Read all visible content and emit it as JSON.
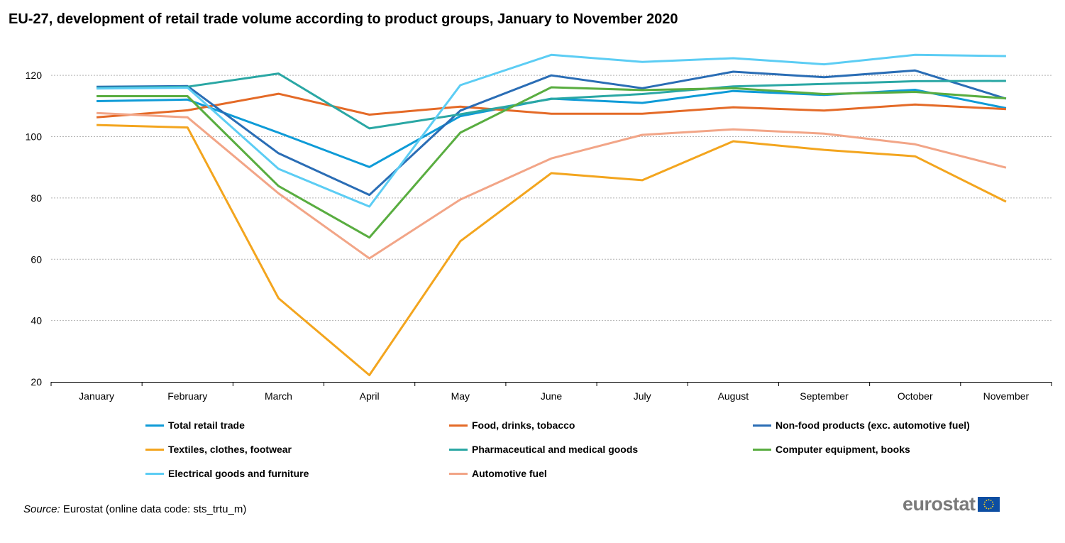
{
  "title": "EU-27, development of retail trade volume according to product groups, January to November 2020",
  "source": {
    "label": "Source:",
    "text": "Eurostat (online data code: sts_trtu_m)"
  },
  "logo": {
    "text": "eurostat",
    "flag": "eu-flag-icon"
  },
  "chart_data": {
    "type": "line",
    "title": "EU-27, development of retail trade volume according to product groups, January to November 2020",
    "xlabel": "",
    "ylabel": "",
    "ylim": [
      20,
      130
    ],
    "yticks": [
      20,
      40,
      60,
      80,
      100,
      120
    ],
    "grid": true,
    "legend_position": "bottom",
    "categories": [
      "January",
      "February",
      "March",
      "April",
      "May",
      "June",
      "July",
      "August",
      "September",
      "October",
      "November"
    ],
    "series": [
      {
        "name": "Total retail trade",
        "color": "#0e9bd7",
        "values": [
          111.6,
          112.1,
          101.3,
          90.1,
          106.7,
          112.4,
          111.0,
          114.9,
          113.6,
          115.3,
          109.3
        ]
      },
      {
        "name": "Food, drinks, tobacco",
        "color": "#e46a27",
        "values": [
          106.3,
          108.6,
          114.0,
          107.2,
          109.8,
          107.5,
          107.5,
          109.6,
          108.5,
          110.5,
          109.0
        ]
      },
      {
        "name": "Non-food products (exc. automotive fuel)",
        "color": "#2a6db5",
        "values": [
          116.3,
          116.5,
          94.6,
          81.0,
          108.5,
          120.0,
          115.8,
          121.2,
          119.4,
          121.6,
          112.4
        ]
      },
      {
        "name": "Textiles, clothes, footwear",
        "color": "#f3a51e",
        "values": [
          103.8,
          103.0,
          47.3,
          22.2,
          65.9,
          88.1,
          85.8,
          98.5,
          95.7,
          93.6,
          78.8
        ]
      },
      {
        "name": "Pharmaceutical and medical goods",
        "color": "#2aa7a4",
        "values": [
          115.9,
          116.3,
          120.6,
          102.7,
          107.3,
          112.3,
          113.9,
          116.4,
          117.2,
          118.1,
          118.2
        ]
      },
      {
        "name": "Computer equipment, books",
        "color": "#59ad40",
        "values": [
          113.2,
          113.2,
          83.9,
          67.1,
          101.3,
          116.1,
          115.2,
          115.8,
          113.9,
          114.6,
          112.5
        ]
      },
      {
        "name": "Electrical goods and furniture",
        "color": "#5ccdf4",
        "values": [
          115.7,
          116.0,
          89.5,
          77.2,
          116.8,
          126.7,
          124.4,
          125.6,
          123.6,
          126.7,
          126.3
        ]
      },
      {
        "name": "Automotive fuel",
        "color": "#f2a587",
        "values": [
          107.7,
          106.3,
          81.5,
          60.3,
          79.5,
          92.9,
          100.6,
          102.4,
          101.0,
          97.5,
          89.9
        ]
      }
    ]
  }
}
